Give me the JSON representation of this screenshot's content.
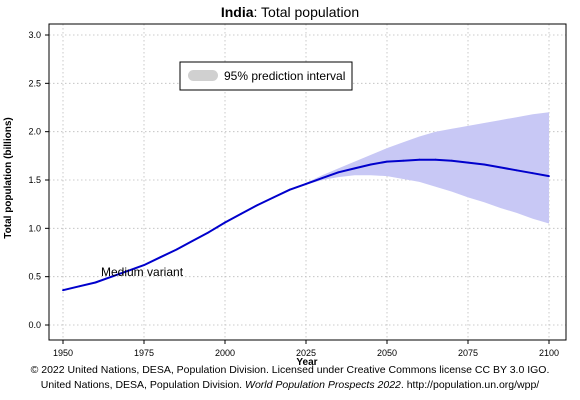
{
  "chart_data": {
    "type": "line",
    "title_bold": "India",
    "title_rest": ": Total population",
    "xlabel": "Year",
    "ylabel": "Total population (billions)",
    "xlim": [
      1950,
      2100
    ],
    "ylim": [
      0.0,
      3.0
    ],
    "xticks": [
      1950,
      1975,
      2000,
      2025,
      2050,
      2075,
      2100
    ],
    "yticks": [
      0.0,
      0.5,
      1.0,
      1.5,
      2.0,
      2.5,
      3.0
    ],
    "ytick_labels": [
      "0.0",
      "0.5",
      "1.0",
      "1.5",
      "2.0",
      "2.5",
      "3.0"
    ],
    "grid": true,
    "legend_position": "top-center",
    "legend_label": "95% prediction interval",
    "annotation": "Medium variant",
    "colors": {
      "line": "#0000cc",
      "band": "#c8c8f5",
      "legend_swatch": "#d0d0d0",
      "grid": "#bbbbbb"
    },
    "series": [
      {
        "name": "Medium variant",
        "x": [
          1950,
          1955,
          1960,
          1965,
          1970,
          1975,
          1980,
          1985,
          1990,
          1995,
          2000,
          2005,
          2010,
          2015,
          2020,
          2025,
          2030,
          2035,
          2040,
          2045,
          2050,
          2055,
          2060,
          2065,
          2070,
          2075,
          2080,
          2085,
          2090,
          2095,
          2100
        ],
        "values": [
          0.36,
          0.4,
          0.44,
          0.5,
          0.56,
          0.62,
          0.7,
          0.78,
          0.87,
          0.96,
          1.06,
          1.15,
          1.24,
          1.32,
          1.4,
          1.46,
          1.52,
          1.58,
          1.62,
          1.66,
          1.69,
          1.7,
          1.71,
          1.71,
          1.7,
          1.68,
          1.66,
          1.63,
          1.6,
          1.57,
          1.54
        ]
      }
    ],
    "prediction_interval": {
      "name": "95% prediction interval",
      "x": [
        2022,
        2025,
        2030,
        2035,
        2040,
        2045,
        2050,
        2055,
        2060,
        2065,
        2070,
        2075,
        2080,
        2085,
        2090,
        2095,
        2100
      ],
      "lower": [
        1.42,
        1.45,
        1.5,
        1.53,
        1.55,
        1.55,
        1.54,
        1.51,
        1.48,
        1.43,
        1.38,
        1.32,
        1.27,
        1.21,
        1.16,
        1.1,
        1.05
      ],
      "upper": [
        1.42,
        1.47,
        1.55,
        1.62,
        1.69,
        1.76,
        1.83,
        1.89,
        1.95,
        2.0,
        2.03,
        2.06,
        2.09,
        2.12,
        2.15,
        2.18,
        2.2
      ]
    }
  },
  "credits": {
    "line1": "© 2022 United Nations, DESA, Population Division. Licensed under Creative Commons license CC BY 3.0 IGO.",
    "line2_prefix": "United Nations, DESA, Population Division. ",
    "line2_italic": "World Population Prospects 2022",
    "line2_suffix": ". http://population.un.org/wpp/"
  }
}
